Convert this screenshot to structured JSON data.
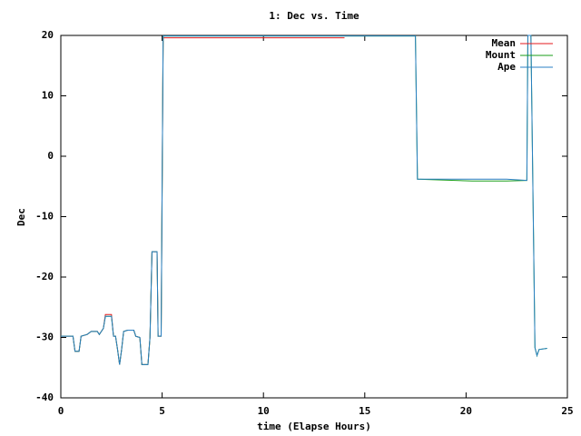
{
  "chart_data": {
    "type": "line",
    "title": "1: Dec vs. Time",
    "x_label": "time (Elapse Hours)",
    "y_label": "Dec",
    "x": [
      0,
      0.6,
      0.7,
      0.9,
      1.0,
      1.3,
      1.5,
      1.8,
      1.9,
      2.0,
      2.1,
      2.2,
      2.5,
      2.6,
      2.7,
      2.8,
      2.9,
      3.0,
      3.1,
      3.3,
      3.6,
      3.7,
      3.9,
      4.0,
      4.3,
      4.4,
      4.5,
      4.75,
      4.8,
      4.95,
      5.0,
      5.05,
      14,
      17.5,
      17.6,
      20.3,
      22,
      23,
      23.05,
      23.2,
      23.4,
      23.5,
      23.6,
      24
    ],
    "series": [
      {
        "name": "Mean",
        "color": "#e41a1c",
        "values": [
          -29.8,
          -29.8,
          -32.3,
          -32.3,
          -29.8,
          -29.5,
          -29,
          -29,
          -29.5,
          -29,
          -28.5,
          -26.2,
          -26.2,
          -29.8,
          -29.8,
          -32,
          -34.5,
          -32,
          -29,
          -28.8,
          -28.8,
          -29.8,
          -30,
          -34.5,
          -34.5,
          -30,
          -15.8,
          -15.8,
          -29.8,
          -29.8,
          -5,
          19.6,
          19.6,
          null,
          null,
          null,
          null,
          null,
          null,
          null,
          null,
          null,
          null,
          null
        ]
      },
      {
        "name": "Mount",
        "color": "#1a9e1a",
        "values": [
          -29.8,
          -29.8,
          -32.3,
          -32.3,
          -29.8,
          -29.5,
          -29,
          -29,
          -29.5,
          -29,
          -28.5,
          -26.5,
          -26.5,
          -29.8,
          -29.8,
          -32,
          -34.5,
          -32,
          -29,
          -28.8,
          -28.8,
          -29.8,
          -30,
          -34.5,
          -34.5,
          -30,
          -15.8,
          -15.8,
          -29.8,
          -29.8,
          -5,
          19.9,
          19.9,
          19.9,
          -3.8,
          -4.1,
          -4.1,
          -4,
          20,
          20,
          -31.7,
          -33,
          -32,
          -31.8
        ]
      },
      {
        "name": "Ape",
        "color": "#2a7fc4",
        "values": [
          -29.8,
          -29.8,
          -32.3,
          -32.3,
          -29.8,
          -29.5,
          -29,
          -29,
          -29.5,
          -29,
          -28.5,
          -26.5,
          -26.5,
          -29.8,
          -29.8,
          -32,
          -34.5,
          -32,
          -29,
          -28.8,
          -28.8,
          -29.8,
          -30,
          -34.5,
          -34.5,
          -30,
          -15.8,
          -15.8,
          -29.8,
          -29.8,
          -5,
          19.9,
          19.9,
          19.9,
          -3.8,
          -3.8,
          -3.8,
          -4,
          20,
          20,
          -31.7,
          -33,
          -32,
          -31.8
        ]
      }
    ],
    "xlim": [
      0,
      25
    ],
    "ylim": [
      -40,
      20
    ],
    "xticks": [
      0,
      5,
      10,
      15,
      20,
      25
    ],
    "yticks": [
      -40,
      -30,
      -20,
      -10,
      0,
      10,
      20
    ],
    "legend": "top-right"
  }
}
